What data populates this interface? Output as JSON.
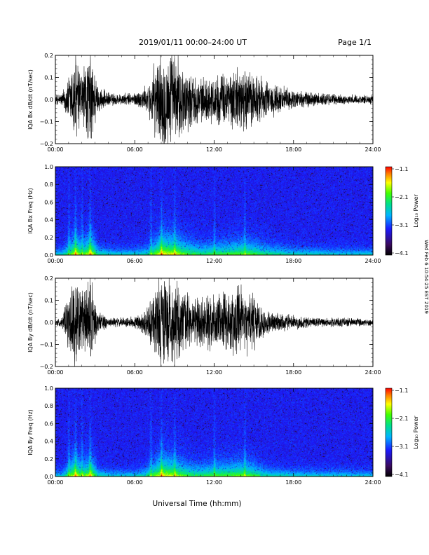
{
  "header": {
    "title": "2019/01/11   00:00–24:00 UT",
    "page": "Page 1/1"
  },
  "footer": {
    "x_axis_label": "Universal Time (hh:mm)",
    "side_note": "Wed Feb 6 10:54:25 EST 2019"
  },
  "chart_data": [
    {
      "type": "line",
      "name_label": "IQA Bx dB/dt (nT/sec)",
      "ylabel": "IQA Bx dB/dt (nT/sec)",
      "ylim": [
        -0.2,
        0.2
      ],
      "yticks": [
        "0.2",
        "0.1",
        "0.0",
        "−0.1",
        "−0.2"
      ],
      "xlim": [
        "00:00",
        "24:00"
      ],
      "xticks": [
        "00:00",
        "06:00",
        "12:00",
        "18:00",
        "24:00"
      ],
      "activity_envelope": [
        {
          "t": 0.0,
          "amp": 0.02
        },
        {
          "t": 0.5,
          "amp": 0.03
        },
        {
          "t": 1.0,
          "amp": 0.1
        },
        {
          "t": 1.5,
          "amp": 0.22
        },
        {
          "t": 2.0,
          "amp": 0.12
        },
        {
          "t": 2.7,
          "amp": 0.22
        },
        {
          "t": 3.2,
          "amp": 0.06
        },
        {
          "t": 4.0,
          "amp": 0.03
        },
        {
          "t": 5.0,
          "amp": 0.025
        },
        {
          "t": 6.0,
          "amp": 0.03
        },
        {
          "t": 7.0,
          "amp": 0.06
        },
        {
          "t": 7.5,
          "amp": 0.15
        },
        {
          "t": 8.0,
          "amp": 0.22
        },
        {
          "t": 9.0,
          "amp": 0.2
        },
        {
          "t": 10.0,
          "amp": 0.13
        },
        {
          "t": 11.0,
          "amp": 0.09
        },
        {
          "t": 12.0,
          "amp": 0.1
        },
        {
          "t": 13.0,
          "amp": 0.12
        },
        {
          "t": 14.0,
          "amp": 0.14
        },
        {
          "t": 15.0,
          "amp": 0.12
        },
        {
          "t": 16.0,
          "amp": 0.08
        },
        {
          "t": 17.0,
          "amp": 0.06
        },
        {
          "t": 18.0,
          "amp": 0.04
        },
        {
          "t": 20.0,
          "amp": 0.03
        },
        {
          "t": 22.0,
          "amp": 0.02
        },
        {
          "t": 24.0,
          "amp": 0.02
        }
      ]
    },
    {
      "type": "heatmap",
      "ylabel": "IQA Bx Freq (Hz)",
      "ylim": [
        0.0,
        1.0
      ],
      "yticks": [
        "1.0",
        "0.8",
        "0.6",
        "0.4",
        "0.2",
        "0.0"
      ],
      "xlim": [
        "00:00",
        "24:00"
      ],
      "xticks": [
        "00:00",
        "06:00",
        "12:00",
        "18:00",
        "24:00"
      ],
      "colorbar_label": "Log₁₀ Power",
      "colorbar_ticks": [
        "−1.1",
        "−2.1",
        "−3.1",
        "−4.1"
      ],
      "colorbar_range": [
        -4.1,
        -1.1
      ]
    },
    {
      "type": "line",
      "ylabel": "IQA By dB/dt (nT/sec)",
      "ylim": [
        -0.2,
        0.2
      ],
      "yticks": [
        "0.2",
        "0.1",
        "0.0",
        "−0.1",
        "−0.2"
      ],
      "xlim": [
        "00:00",
        "24:00"
      ],
      "xticks": [
        "00:00",
        "06:00",
        "12:00",
        "18:00",
        "24:00"
      ],
      "activity_envelope": [
        {
          "t": 0.0,
          "amp": 0.015
        },
        {
          "t": 0.5,
          "amp": 0.02
        },
        {
          "t": 1.0,
          "amp": 0.12
        },
        {
          "t": 1.5,
          "amp": 0.22
        },
        {
          "t": 2.0,
          "amp": 0.13
        },
        {
          "t": 2.7,
          "amp": 0.2
        },
        {
          "t": 3.2,
          "amp": 0.05
        },
        {
          "t": 4.0,
          "amp": 0.02
        },
        {
          "t": 5.0,
          "amp": 0.02
        },
        {
          "t": 6.0,
          "amp": 0.025
        },
        {
          "t": 6.7,
          "amp": 0.05
        },
        {
          "t": 7.3,
          "amp": 0.12
        },
        {
          "t": 8.0,
          "amp": 0.22
        },
        {
          "t": 9.0,
          "amp": 0.18
        },
        {
          "t": 10.0,
          "amp": 0.12
        },
        {
          "t": 11.0,
          "amp": 0.1
        },
        {
          "t": 12.0,
          "amp": 0.12
        },
        {
          "t": 13.0,
          "amp": 0.13
        },
        {
          "t": 14.0,
          "amp": 0.15
        },
        {
          "t": 15.0,
          "amp": 0.12
        },
        {
          "t": 16.0,
          "amp": 0.05
        },
        {
          "t": 17.0,
          "amp": 0.04
        },
        {
          "t": 18.0,
          "amp": 0.03
        },
        {
          "t": 20.0,
          "amp": 0.02
        },
        {
          "t": 22.0,
          "amp": 0.02
        },
        {
          "t": 24.0,
          "amp": 0.015
        }
      ]
    },
    {
      "type": "heatmap",
      "ylabel": "IQA By Freq (Hz)",
      "ylim": [
        0.0,
        1.0
      ],
      "yticks": [
        "1.0",
        "0.8",
        "0.6",
        "0.4",
        "0.2",
        "0.0"
      ],
      "xlim": [
        "00:00",
        "24:00"
      ],
      "xticks": [
        "00:00",
        "06:00",
        "12:00",
        "18:00",
        "24:00"
      ],
      "colorbar_label": "Log₁₀ Power",
      "colorbar_ticks": [
        "−1.1",
        "−2.1",
        "−3.1",
        "−4.1"
      ],
      "colorbar_range": [
        -4.1,
        -1.1
      ]
    }
  ]
}
